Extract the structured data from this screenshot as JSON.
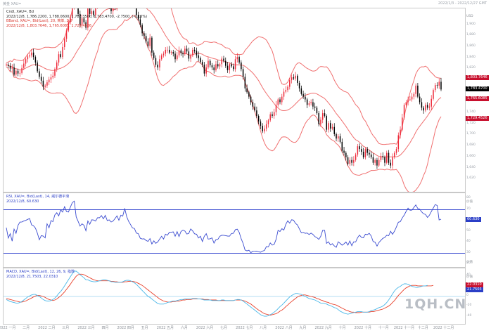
{
  "topbar": {
    "left": "黄金 XAU=",
    "right": "2022/1/3 - 2022/12/27 GMT"
  },
  "price_pane": {
    "title": "Cndl, XAU=, Bd",
    "ohlc": "2022/12/8, 1,786.2200, 1,788.0600, 1,782.3500, 1,783.4700, -2.7500, (-0.15%)",
    "bband_title": "BBand, XAU=, Bid(Last), 20, 简单, 2.0",
    "bband_values": "2022/12/8, 1,803.7646, 1,765.6085, 1,729.4526",
    "unit": "USD",
    "ticks": [
      "1,900",
      "1,880",
      "1,860",
      "1,840",
      "1,820",
      "1,800",
      "1,780",
      "1,760",
      "1,740",
      "1,720",
      "1,700",
      "1,680",
      "1,660",
      "1,640",
      "1,620"
    ],
    "tags": [
      "1,803.7646",
      "1,783.4700",
      "1,765.6085",
      "1,729.4526"
    ]
  },
  "rsi_pane": {
    "title": "RSI, XAU=, Bid(Last), 14, 威尔德平滑",
    "value": "2022/12/8, 60.630",
    "unit": "价值",
    "ticks": [
      "80",
      "70",
      "60",
      "50",
      "40",
      "30",
      "20"
    ],
    "tag": "60.630",
    "scale_label": "价值"
  },
  "macd_pane": {
    "title": "MACD, XAU=, Bid(Last), 12, 26, 9, 指数",
    "value": "2022/12/8, 21.7503, 22.0310",
    "unit": "价值",
    "ticks": [
      "40",
      "20",
      "0",
      "-20",
      "-40"
    ],
    "tags": [
      "22.0310",
      "21.7503"
    ]
  },
  "x_axis": {
    "labels": [
      "2022 一月",
      "二月",
      "2022 二月",
      "三月",
      "2022 三月",
      "四月",
      "2022 四月",
      "五月",
      "2022 五月",
      "六月",
      "2022 六月",
      "七月",
      "2022 七月",
      "八月",
      "2022 八月",
      "九月",
      "2022 九月",
      "十月",
      "2022 十月",
      "十一月",
      "2022 十一月",
      "十二月",
      "2022 十二月"
    ]
  },
  "watermark": "1QH.CN",
  "chart_data": {
    "type": "line",
    "symbol": "XAU=",
    "period": "2022/1/3 - 2022/12/27",
    "colors": {
      "up": "#ee2a3a",
      "down": "#000000",
      "bband": "#f07070",
      "rsi": "#3a4bd0",
      "macd": "#4ab7e8",
      "signal": "#e8402a",
      "ref_line": "#3a4bd0"
    },
    "candles_close": [
      1828,
      1826,
      1821,
      1823,
      1810,
      1817,
      1812,
      1813,
      1822,
      1830,
      1838,
      1843,
      1845,
      1850,
      1842,
      1832,
      1816,
      1806,
      1799,
      1788,
      1790,
      1796,
      1801,
      1805,
      1808,
      1820,
      1832,
      1847,
      1842,
      1860,
      1875,
      1890,
      1905,
      1913,
      1934,
      1950,
      1938,
      1920,
      1900,
      1912,
      1905,
      1895,
      1930,
      1920,
      1925,
      1918,
      1935,
      1942,
      1945,
      1950,
      1955,
      1948,
      1940,
      1933,
      1925,
      1938,
      1930,
      1945,
      1941,
      1947,
      1958,
      1972,
      1977,
      1961,
      1953,
      1945,
      1935,
      1918,
      1910,
      1900,
      1885,
      1880,
      1870,
      1862,
      1877,
      1850,
      1840,
      1828,
      1823,
      1838,
      1845,
      1848,
      1855,
      1855,
      1850,
      1851,
      1848,
      1838,
      1845,
      1854,
      1849,
      1847,
      1857,
      1852,
      1839,
      1845,
      1855,
      1853,
      1845,
      1840,
      1833,
      1828,
      1812,
      1823,
      1835,
      1827,
      1823,
      1818,
      1829,
      1825,
      1829,
      1839,
      1835,
      1826,
      1818,
      1829,
      1825,
      1820,
      1838,
      1842,
      1832,
      1820,
      1806,
      1785,
      1778,
      1770,
      1760,
      1752,
      1745,
      1735,
      1725,
      1717,
      1707,
      1712,
      1720,
      1727,
      1738,
      1735,
      1742,
      1755,
      1765,
      1760,
      1770,
      1779,
      1782,
      1788,
      1800,
      1805,
      1803,
      1808,
      1795,
      1785,
      1775,
      1770,
      1765,
      1755,
      1758,
      1760,
      1752,
      1750,
      1740,
      1720,
      1728,
      1740,
      1735,
      1710,
      1722,
      1712,
      1715,
      1702,
      1694,
      1698,
      1688,
      1672,
      1668,
      1660,
      1648,
      1655,
      1650,
      1655,
      1665,
      1680,
      1675,
      1670,
      1660,
      1675,
      1668,
      1665,
      1660,
      1650,
      1655,
      1645,
      1655,
      1662,
      1660,
      1650,
      1668,
      1650,
      1645,
      1660,
      1668,
      1675,
      1700,
      1710,
      1732,
      1755,
      1760,
      1765,
      1765,
      1770,
      1775,
      1790,
      1770,
      1760,
      1750,
      1745,
      1755,
      1750,
      1752,
      1766,
      1782,
      1791,
      1790,
      1797,
      1783
    ],
    "price_ylim": [
      1605,
      1925
    ],
    "rsi_ylim": [
      20,
      80
    ],
    "rsi_ref": [
      70,
      30
    ],
    "rsi_values": [
      53.5,
      44.0,
      48.0,
      41.1,
      52.2,
      48.3,
      55.6,
      58.6,
      58.8,
      59.6,
      60.2,
      61.1,
      61.9,
      56.1,
      55.3,
      53.1,
      48.5,
      42.4,
      46.2,
      45.8,
      44.1,
      57.0,
      53.4,
      60.0,
      59.0,
      65.3,
      67.2,
      64.3,
      69.9,
      67.8,
      72.8,
      68.3,
      67.9,
      72.3,
      76.5,
      77.9,
      63.4,
      59.2,
      55.0,
      57.0,
      55.7,
      50.7,
      59.7,
      56.6,
      60.7,
      60.5,
      59.6,
      62.7,
      62.6,
      64.6,
      61.6,
      64.8,
      60.0,
      60.7,
      58.7,
      59.6,
      61.9,
      64.3,
      60.3,
      64.9,
      64.1,
      71.2,
      63.6,
      59.4,
      56.3,
      53.3,
      52.8,
      48.6,
      48.0,
      43.8,
      43.1,
      43.3,
      41.8,
      40.9,
      43.5,
      38.5,
      41.4,
      39.1,
      40.4,
      43.1,
      45.6,
      43.0,
      47.5,
      46.6,
      49.3,
      49.3,
      49.7,
      45.7,
      49.9,
      45.3,
      50.0,
      51.2,
      50.4,
      47.7,
      48.2,
      52.3,
      50.5,
      47.9,
      47.5,
      44.0,
      45.6,
      40.8,
      45.6,
      48.0,
      43.0,
      43.3,
      44.1,
      39.3,
      42.5,
      42.8,
      45.6,
      46.6,
      46.5,
      46.2,
      45.8,
      45.7,
      48.1,
      48.3,
      51.7,
      52.1,
      49.1,
      43.4,
      39.0,
      33.0,
      32.2,
      32.8,
      30.6,
      31.8,
      31.9,
      32.0,
      31.3,
      31.0,
      32.0,
      32.6,
      36.1,
      35.9,
      39.5,
      37.5,
      38.1,
      42.8,
      51.1,
      50.0,
      52.6,
      51.3,
      56.6,
      59.8,
      57.7,
      60.8,
      60.4,
      57.4,
      56.0,
      52.4,
      48.8,
      49.2,
      48.3,
      48.6,
      47.2,
      48.5,
      47.3,
      45.3,
      44.4,
      42.8,
      45.5,
      51.1,
      51.1,
      39.1,
      40.5,
      37.6,
      38.8,
      36.7,
      35.5,
      40.5,
      39.1,
      37.4,
      38.7,
      40.3,
      37.5,
      41.3,
      36.9,
      40.5,
      40.4,
      44.4,
      46.7,
      44.5,
      44.2,
      47.5,
      47.1,
      48.3,
      45.9,
      40.8,
      40.1,
      36.6,
      39.9,
      41.9,
      43.7,
      44.5,
      46.6,
      46.1,
      50.2,
      47.4,
      50.3,
      54.1,
      58.5,
      59.0,
      62.4,
      65.1,
      68.4,
      71.4,
      69.5,
      69.6,
      72.1,
      74.4,
      71.1,
      70.5,
      68.0,
      66.2,
      65.7,
      62.9,
      64.9,
      68.3,
      71.6,
      74.7,
      73.9,
      60.6,
      61.3
    ],
    "macd_ylim": [
      -50,
      50
    ],
    "macd_values": [
      -6,
      -8,
      -10,
      -11,
      -12,
      -13,
      -13,
      -12,
      -10,
      -7,
      -4,
      -1,
      1,
      3,
      4,
      4,
      2,
      0,
      -3,
      -6,
      -8,
      -9,
      -9,
      -8,
      -6,
      -3,
      1,
      6,
      10,
      15,
      21,
      27,
      33,
      39,
      45,
      50,
      50,
      47,
      43,
      40,
      37,
      33,
      33,
      31,
      30,
      29,
      29,
      30,
      31,
      32,
      33,
      33,
      32,
      31,
      29,
      29,
      28,
      28,
      28,
      28,
      29,
      31,
      32,
      32,
      31,
      29,
      27,
      24,
      20,
      16,
      12,
      8,
      4,
      0,
      -2,
      -5,
      -8,
      -11,
      -14,
      -15,
      -15,
      -15,
      -14,
      -12,
      -11,
      -10,
      -9,
      -9,
      -8,
      -7,
      -6,
      -6,
      -5,
      -5,
      -5,
      -5,
      -4,
      -4,
      -4,
      -5,
      -5,
      -6,
      -7,
      -7,
      -7,
      -7,
      -8,
      -8,
      -8,
      -8,
      -8,
      -7,
      -7,
      -8,
      -8,
      -8,
      -8,
      -8,
      -7,
      -6,
      -6,
      -7,
      -9,
      -12,
      -15,
      -18,
      -21,
      -24,
      -27,
      -30,
      -33,
      -36,
      -38,
      -39,
      -39,
      -38,
      -36,
      -34,
      -31,
      -28,
      -24,
      -20,
      -17,
      -13,
      -9,
      -5,
      -1,
      2,
      4,
      6,
      6,
      5,
      4,
      2,
      0,
      -2,
      -4,
      -5,
      -6,
      -7,
      -9,
      -11,
      -13,
      -13,
      -14,
      -15,
      -17,
      -18,
      -20,
      -22,
      -23,
      -26,
      -29,
      -31,
      -33,
      -34,
      -35,
      -34,
      -33,
      -32,
      -31,
      -30,
      -30,
      -30,
      -31,
      -31,
      -31,
      -30,
      -28,
      -27,
      -26,
      -24,
      -22,
      -21,
      -19,
      -16,
      -12,
      -7,
      -1,
      5,
      11,
      15,
      18,
      20,
      23,
      25,
      25,
      24,
      22,
      20,
      19,
      18,
      18,
      19,
      20,
      21,
      21,
      22
    ],
    "signal_values": [
      -4,
      -5,
      -6,
      -7,
      -8,
      -9,
      -10,
      -11,
      -11,
      -10,
      -9,
      -7,
      -5,
      -3,
      -1,
      1,
      2,
      2,
      1,
      0,
      -2,
      -4,
      -6,
      -7,
      -8,
      -7,
      -5,
      -2,
      1,
      5,
      9,
      14,
      19,
      24,
      30,
      35,
      40,
      43,
      44,
      44,
      43,
      41,
      39,
      37,
      35,
      33,
      32,
      31,
      31,
      31,
      31,
      31,
      31,
      31,
      30,
      30,
      29,
      29,
      28,
      28,
      28,
      29,
      29,
      30,
      30,
      30,
      29,
      28,
      26,
      24,
      22,
      19,
      16,
      13,
      10,
      7,
      4,
      1,
      -2,
      -5,
      -7,
      -9,
      -10,
      -11,
      -11,
      -11,
      -10,
      -10,
      -9,
      -9,
      -8,
      -7,
      -7,
      -6,
      -6,
      -6,
      -5,
      -5,
      -5,
      -5,
      -5,
      -5,
      -6,
      -6,
      -6,
      -7,
      -7,
      -7,
      -7,
      -8,
      -8,
      -8,
      -8,
      -8,
      -8,
      -8,
      -8,
      -8,
      -7,
      -7,
      -7,
      -7,
      -8,
      -9,
      -11,
      -13,
      -15,
      -18,
      -21,
      -24,
      -27,
      -29,
      -32,
      -34,
      -35,
      -36,
      -37,
      -36,
      -35,
      -34,
      -32,
      -29,
      -27,
      -24,
      -20,
      -17,
      -13,
      -10,
      -7,
      -4,
      -1,
      1,
      2,
      3,
      3,
      2,
      1,
      0,
      -1,
      -2,
      -4,
      -5,
      -7,
      -8,
      -10,
      -11,
      -12,
      -14,
      -15,
      -16,
      -17,
      -19,
      -21,
      -23,
      -25,
      -27,
      -28,
      -30,
      -31,
      -31,
      -32,
      -32,
      -32,
      -31,
      -31,
      -31,
      -31,
      -31,
      -30,
      -30,
      -29,
      -28,
      -27,
      -26,
      -25,
      -23,
      -21,
      -19,
      -16,
      -12,
      -8,
      -3,
      2,
      6,
      10,
      14,
      17,
      19,
      21,
      22,
      22,
      22,
      21,
      21,
      21,
      21,
      21,
      21,
      21,
      21,
      22
    ]
  }
}
